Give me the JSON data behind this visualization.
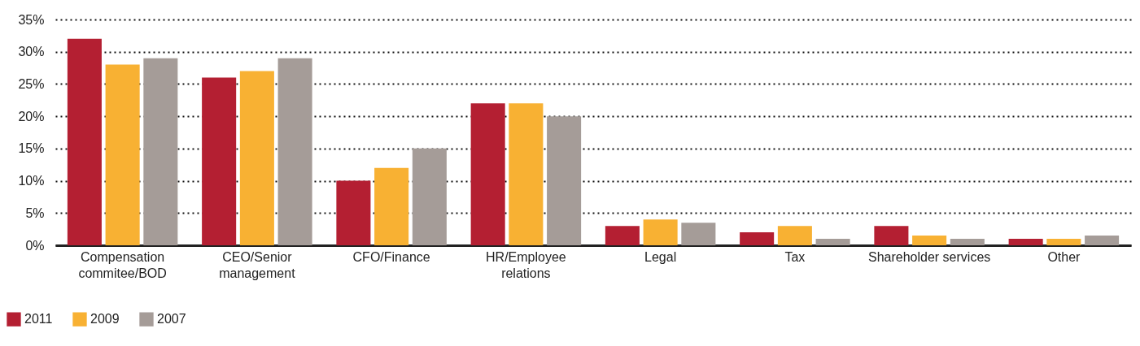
{
  "chart_data": {
    "type": "bar",
    "categories": [
      "Compensation commitee/BOD",
      "CEO/Senior management",
      "CFO/Finance",
      "HR/Employee relations",
      "Legal",
      "Tax",
      "Shareholder services",
      "Other"
    ],
    "series": [
      {
        "name": "2011",
        "color": "#b41f32",
        "values": [
          32,
          26,
          10,
          22,
          3,
          2,
          3,
          1
        ]
      },
      {
        "name": "2009",
        "color": "#f8b133",
        "values": [
          28,
          27,
          12,
          22,
          4,
          3,
          1.5,
          1
        ]
      },
      {
        "name": "2007",
        "color": "#a59c98",
        "values": [
          29,
          29,
          15,
          20,
          3.5,
          1,
          1,
          1.5
        ]
      }
    ],
    "ylim": [
      0,
      35
    ],
    "yticks": [
      {
        "value": 0,
        "label": "0%"
      },
      {
        "value": 5,
        "label": "5%"
      },
      {
        "value": 10,
        "label": "10%"
      },
      {
        "value": 15,
        "label": "15%"
      },
      {
        "value": 20,
        "label": "20%"
      },
      {
        "value": 25,
        "label": "25%"
      },
      {
        "value": 30,
        "label": "30%"
      },
      {
        "value": 35,
        "label": "35%"
      }
    ],
    "grid": "y",
    "legend": "bottom left"
  }
}
